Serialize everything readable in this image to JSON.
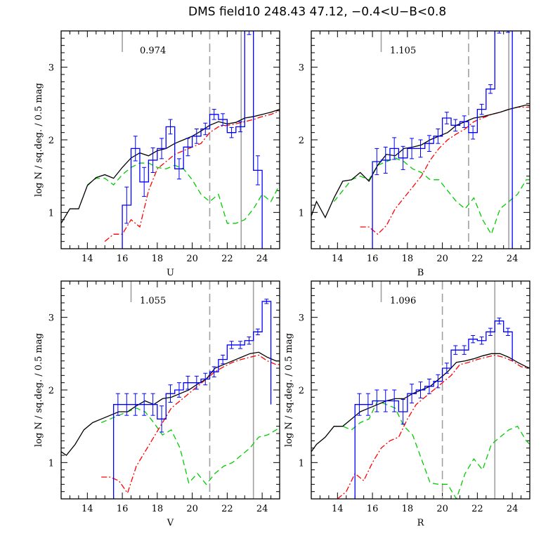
{
  "title": "DMS field10  248.43  47.12,  −0.4<U−B<0.8",
  "colors": {
    "observed": "#0000ff",
    "model_total": "#000000",
    "model_red": "#ff0000",
    "model_green": "#00cc00",
    "limits": "#a0a0a0"
  },
  "chart_data": [
    {
      "type": "line",
      "panel": "U",
      "xlabel": "U",
      "ylabel": "log N / sq.deg. / 0.5 mag",
      "annotation": "0.974",
      "xlim": [
        12.5,
        25
      ],
      "ylim": [
        0.5,
        3.5
      ],
      "xticks": [
        14,
        16,
        18,
        20,
        22,
        24
      ],
      "yticks": [
        1,
        2,
        3
      ],
      "vlines": [
        {
          "x": 16.0,
          "style": "short-solid"
        },
        {
          "x": 21.0,
          "style": "dashed"
        },
        {
          "x": 22.8,
          "style": "solid"
        }
      ],
      "observed": {
        "edges": [
          16.0,
          16.5,
          17.0,
          17.5,
          18.0,
          18.5,
          19.0,
          19.5,
          20.0,
          20.5,
          21.0,
          21.5,
          22.0,
          22.5,
          23.0,
          23.5,
          24.0
        ],
        "values": [
          1.1,
          1.88,
          1.42,
          1.72,
          1.88,
          2.18,
          1.6,
          1.9,
          2.05,
          2.15,
          2.35,
          2.28,
          2.1,
          2.18,
          3.5,
          1.58
        ],
        "errors": [
          0.25,
          0.17,
          0.2,
          0.17,
          0.14,
          0.1,
          0.14,
          0.12,
          0.1,
          0.08,
          0.07,
          0.08,
          0.07,
          0.07,
          0.05,
          0.2
        ]
      },
      "model_total": {
        "x": [
          12.5,
          13.0,
          13.5,
          14.0,
          14.5,
          15.0,
          15.5,
          16.0,
          16.5,
          17.0,
          17.5,
          18.0,
          18.5,
          19.0,
          19.5,
          20.0,
          20.5,
          21.0,
          21.5,
          22.0,
          22.5,
          23.0,
          23.5,
          24.0,
          24.5,
          25.0
        ],
        "y": [
          0.85,
          1.05,
          1.05,
          1.37,
          1.48,
          1.52,
          1.47,
          1.62,
          1.75,
          1.82,
          1.78,
          1.85,
          1.88,
          1.95,
          2.0,
          2.05,
          2.12,
          2.2,
          2.25,
          2.22,
          2.24,
          2.3,
          2.32,
          2.35,
          2.38,
          2.42
        ]
      },
      "model_red": {
        "x": [
          15.0,
          15.5,
          16.0,
          16.5,
          17.0,
          17.5,
          18.0,
          18.5,
          19.0,
          19.5,
          20.0,
          20.5,
          21.0,
          21.5,
          22.0,
          22.5,
          23.0,
          23.5,
          24.0,
          24.5,
          25.0
        ],
        "y": [
          0.6,
          0.7,
          0.7,
          0.9,
          0.8,
          1.3,
          1.6,
          1.7,
          1.8,
          1.85,
          1.9,
          1.95,
          2.1,
          2.18,
          2.2,
          2.22,
          2.25,
          2.28,
          2.32,
          2.35,
          2.4
        ]
      },
      "model_green": {
        "x": [
          14.0,
          14.5,
          15.0,
          15.5,
          16.0,
          16.5,
          17.0,
          17.5,
          18.0,
          18.5,
          19.0,
          19.5,
          20.0,
          20.5,
          21.0,
          21.5,
          22.0,
          22.5,
          23.0,
          23.5,
          24.0,
          24.5,
          25.0
        ],
        "y": [
          1.38,
          1.47,
          1.47,
          1.38,
          1.52,
          1.62,
          1.68,
          1.68,
          1.62,
          1.6,
          1.65,
          1.6,
          1.45,
          1.25,
          1.15,
          1.25,
          0.85,
          0.85,
          0.9,
          1.05,
          1.25,
          1.15,
          1.38
        ]
      }
    },
    {
      "type": "line",
      "panel": "B",
      "xlabel": "B",
      "ylabel": "",
      "annotation": "1.105",
      "xlim": [
        12.5,
        25
      ],
      "ylim": [
        0.5,
        3.5
      ],
      "xticks": [
        14,
        16,
        18,
        20,
        22,
        24
      ],
      "yticks": [
        1,
        2,
        3
      ],
      "vlines": [
        {
          "x": 16.5,
          "style": "short-solid"
        },
        {
          "x": 21.5,
          "style": "dashed"
        },
        {
          "x": 23.8,
          "style": "solid"
        }
      ],
      "observed": {
        "edges": [
          16.0,
          16.5,
          17.0,
          17.5,
          18.0,
          18.5,
          19.0,
          19.5,
          20.0,
          20.5,
          21.0,
          21.5,
          22.0,
          22.5,
          23.0,
          23.5,
          24.0
        ],
        "values": [
          1.7,
          1.72,
          1.88,
          1.75,
          1.88,
          1.88,
          1.95,
          2.05,
          2.3,
          2.2,
          2.25,
          2.1,
          2.42,
          2.7,
          3.5,
          3.5
        ],
        "errors": [
          0.18,
          0.18,
          0.15,
          0.16,
          0.14,
          0.12,
          0.11,
          0.1,
          0.08,
          0.08,
          0.08,
          0.09,
          0.07,
          0.06,
          0.03,
          0.02
        ]
      },
      "model_total": {
        "x": [
          12.5,
          12.8,
          13.3,
          13.8,
          14.3,
          14.8,
          15.3,
          15.8,
          16.3,
          16.8,
          17.3,
          17.8,
          18.3,
          18.8,
          19.3,
          19.8,
          20.3,
          20.8,
          21.3,
          21.8,
          22.3,
          22.8,
          23.3,
          23.8,
          24.3,
          24.8,
          25.0
        ],
        "y": [
          0.95,
          1.15,
          0.93,
          1.2,
          1.43,
          1.45,
          1.55,
          1.43,
          1.65,
          1.8,
          1.78,
          1.88,
          1.9,
          1.93,
          2.0,
          2.05,
          2.1,
          2.2,
          2.25,
          2.3,
          2.32,
          2.35,
          2.38,
          2.42,
          2.45,
          2.48,
          2.47
        ]
      },
      "model_red": {
        "x": [
          15.3,
          15.8,
          16.3,
          16.8,
          17.3,
          17.8,
          18.3,
          18.8,
          19.3,
          19.8,
          20.3,
          20.8,
          21.3,
          21.8,
          22.3,
          22.8,
          23.3,
          23.8,
          24.3,
          24.8,
          25.0
        ],
        "y": [
          0.8,
          0.8,
          0.7,
          0.82,
          1.05,
          1.2,
          1.35,
          1.5,
          1.72,
          1.88,
          2.0,
          2.08,
          2.15,
          2.25,
          2.3,
          2.35,
          2.38,
          2.42,
          2.45,
          2.45,
          2.45
        ]
      },
      "model_green": {
        "x": [
          13.8,
          14.3,
          14.8,
          15.3,
          15.8,
          16.3,
          16.8,
          17.3,
          17.8,
          18.3,
          18.8,
          19.3,
          19.8,
          20.3,
          20.8,
          21.3,
          21.8,
          22.3,
          22.8,
          23.3,
          23.8,
          24.3,
          24.8,
          25.0
        ],
        "y": [
          1.15,
          1.3,
          1.45,
          1.5,
          1.45,
          1.65,
          1.7,
          1.75,
          1.7,
          1.6,
          1.55,
          1.45,
          1.45,
          1.3,
          1.15,
          1.05,
          1.2,
          0.9,
          0.7,
          1.05,
          1.15,
          1.25,
          1.45,
          1.45
        ]
      }
    },
    {
      "type": "line",
      "panel": "V",
      "xlabel": "V",
      "ylabel": "log N / sq.deg. / 0.5 mag",
      "annotation": "1.055",
      "xlim": [
        12.5,
        25
      ],
      "ylim": [
        0.5,
        3.5
      ],
      "xticks": [
        14,
        16,
        18,
        20,
        22,
        24
      ],
      "yticks": [
        1,
        2,
        3
      ],
      "vlines": [
        {
          "x": 16.5,
          "style": "short-solid"
        },
        {
          "x": 21.0,
          "style": "dashed"
        },
        {
          "x": 23.5,
          "style": "solid"
        }
      ],
      "observed": {
        "edges": [
          15.5,
          16.0,
          16.5,
          17.0,
          17.5,
          18.0,
          18.5,
          19.0,
          19.5,
          20.0,
          20.5,
          21.0,
          21.5,
          22.0,
          22.5,
          23.0,
          23.5,
          24.0,
          24.5
        ],
        "values": [
          1.8,
          1.8,
          1.8,
          1.8,
          1.8,
          1.6,
          1.95,
          2.0,
          2.1,
          2.1,
          2.15,
          2.25,
          2.42,
          2.62,
          2.62,
          2.68,
          2.8,
          3.22,
          1.8
        ],
        "errors": [
          0.15,
          0.15,
          0.15,
          0.15,
          0.15,
          0.18,
          0.12,
          0.1,
          0.09,
          0.09,
          0.08,
          0.07,
          0.06,
          0.05,
          0.05,
          0.05,
          0.04,
          0.03,
          0.15
        ]
      },
      "model_total": {
        "x": [
          12.5,
          12.8,
          13.3,
          13.8,
          14.3,
          14.8,
          15.3,
          15.8,
          16.3,
          16.8,
          17.3,
          17.8,
          18.3,
          18.8,
          19.3,
          19.8,
          20.3,
          20.8,
          21.3,
          21.8,
          22.3,
          22.8,
          23.3,
          23.8,
          24.3,
          24.8,
          25.0
        ],
        "y": [
          1.15,
          1.1,
          1.25,
          1.45,
          1.55,
          1.6,
          1.65,
          1.7,
          1.7,
          1.78,
          1.85,
          1.8,
          1.88,
          1.9,
          1.95,
          2.0,
          2.08,
          2.15,
          2.3,
          2.35,
          2.4,
          2.45,
          2.5,
          2.52,
          2.45,
          2.4,
          2.4
        ]
      },
      "model_red": {
        "x": [
          14.8,
          15.3,
          15.8,
          16.3,
          16.8,
          17.3,
          17.8,
          18.3,
          18.8,
          19.3,
          19.8,
          20.3,
          20.8,
          21.3,
          21.8,
          22.3,
          22.8,
          23.3,
          23.8,
          24.3,
          24.8,
          25.0
        ],
        "y": [
          0.8,
          0.8,
          0.75,
          0.58,
          0.95,
          1.15,
          1.35,
          1.55,
          1.75,
          1.85,
          1.95,
          2.05,
          2.15,
          2.25,
          2.32,
          2.38,
          2.42,
          2.45,
          2.48,
          2.4,
          2.35,
          2.35
        ]
      },
      "model_green": {
        "x": [
          14.8,
          15.3,
          15.8,
          16.3,
          16.8,
          17.3,
          17.8,
          18.3,
          18.8,
          19.3,
          19.8,
          20.3,
          20.8,
          21.3,
          21.8,
          22.3,
          22.8,
          23.3,
          23.8,
          24.3,
          24.8,
          25.0
        ],
        "y": [
          1.55,
          1.6,
          1.65,
          1.7,
          1.75,
          1.7,
          1.55,
          1.38,
          1.45,
          1.2,
          0.72,
          0.85,
          0.7,
          0.85,
          0.95,
          1.0,
          1.1,
          1.2,
          1.35,
          1.38,
          1.45,
          1.48
        ]
      }
    },
    {
      "type": "line",
      "panel": "R",
      "xlabel": "R",
      "ylabel": "log N / sq.deg. / 0.5 mag",
      "annotation": "1.096",
      "xlim": [
        12.5,
        25
      ],
      "ylim": [
        0.5,
        3.5
      ],
      "xticks": [
        14,
        16,
        18,
        20,
        22,
        24
      ],
      "yticks": [
        1,
        2,
        3
      ],
      "vlines": [
        {
          "x": 16.5,
          "style": "short-solid"
        },
        {
          "x": 20.0,
          "style": "dashed"
        },
        {
          "x": 23.0,
          "style": "solid"
        }
      ],
      "observed": {
        "edges": [
          15.0,
          15.5,
          16.0,
          16.5,
          17.0,
          17.5,
          18.0,
          18.5,
          19.0,
          19.5,
          20.0,
          20.5,
          21.0,
          21.5,
          22.0,
          22.5,
          23.0,
          23.5,
          24.0
        ],
        "values": [
          1.8,
          1.8,
          1.85,
          1.85,
          1.85,
          1.7,
          1.95,
          2.0,
          2.05,
          2.12,
          2.3,
          2.55,
          2.55,
          2.7,
          2.68,
          2.8,
          2.95,
          2.8,
          2.4
        ],
        "errors": [
          0.15,
          0.15,
          0.15,
          0.15,
          0.15,
          0.17,
          0.13,
          0.11,
          0.1,
          0.09,
          0.07,
          0.06,
          0.06,
          0.05,
          0.05,
          0.05,
          0.04,
          0.05,
          0.1
        ]
      },
      "model_total": {
        "x": [
          12.5,
          12.8,
          13.3,
          13.8,
          14.3,
          14.8,
          15.3,
          15.8,
          16.3,
          16.8,
          17.3,
          17.8,
          18.3,
          18.8,
          19.3,
          19.8,
          20.3,
          20.8,
          21.3,
          21.8,
          22.3,
          22.8,
          23.3,
          23.8,
          24.3,
          24.8,
          25.0
        ],
        "y": [
          1.15,
          1.25,
          1.35,
          1.5,
          1.5,
          1.6,
          1.7,
          1.75,
          1.8,
          1.85,
          1.88,
          1.88,
          1.95,
          2.0,
          2.05,
          2.15,
          2.25,
          2.38,
          2.4,
          2.43,
          2.47,
          2.5,
          2.5,
          2.45,
          2.38,
          2.32,
          2.3
        ]
      },
      "model_red": {
        "x": [
          14.0,
          14.5,
          15.0,
          15.5,
          16.0,
          16.5,
          17.0,
          17.5,
          18.0,
          18.5,
          19.0,
          19.5,
          20.0,
          20.5,
          21.0,
          21.5,
          22.0,
          22.5,
          23.0,
          23.5,
          24.0,
          24.5,
          25.0
        ],
        "y": [
          0.5,
          0.6,
          0.85,
          0.75,
          1.0,
          1.2,
          1.3,
          1.35,
          1.6,
          1.8,
          1.9,
          2.0,
          2.1,
          2.2,
          2.35,
          2.38,
          2.42,
          2.45,
          2.48,
          2.45,
          2.4,
          2.32,
          2.3
        ]
      },
      "model_green": {
        "x": [
          13.8,
          14.3,
          14.8,
          15.3,
          15.8,
          16.3,
          16.8,
          17.3,
          17.8,
          18.3,
          18.8,
          19.3,
          19.8,
          20.3,
          20.8,
          21.3,
          21.8,
          22.3,
          22.8,
          23.3,
          23.8,
          24.3,
          24.8,
          25.0
        ],
        "y": [
          1.5,
          1.5,
          1.45,
          1.55,
          1.6,
          1.85,
          1.8,
          1.75,
          1.5,
          1.38,
          1.05,
          0.72,
          0.7,
          0.7,
          0.5,
          0.85,
          1.05,
          0.9,
          1.25,
          1.35,
          1.45,
          1.5,
          1.3,
          1.25
        ]
      }
    }
  ]
}
